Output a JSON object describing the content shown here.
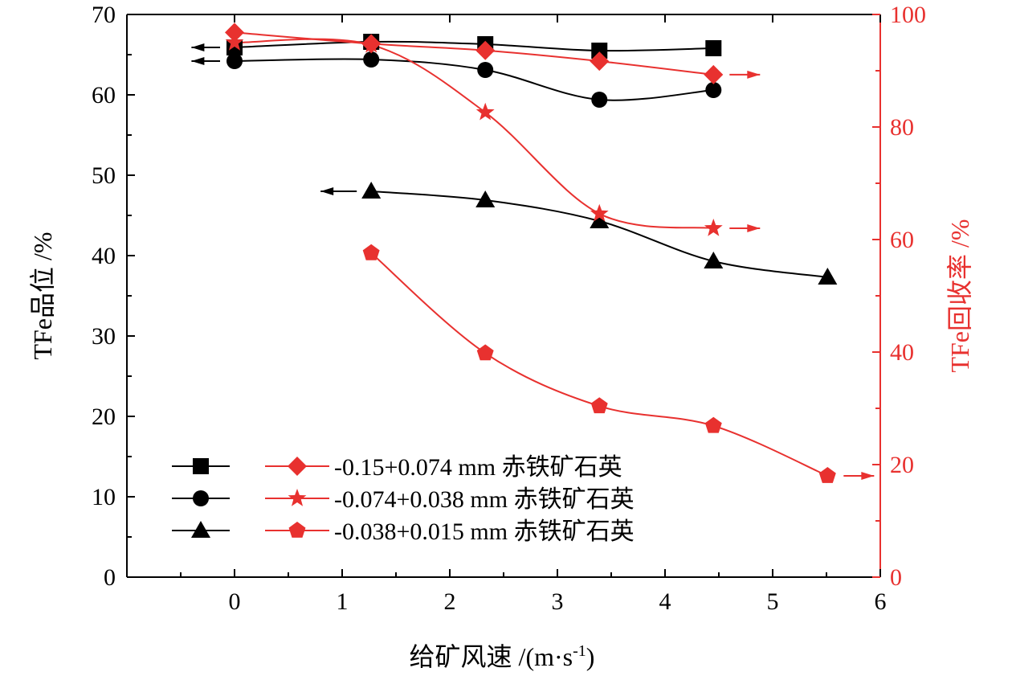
{
  "chart_data": {
    "type": "line",
    "xlabel": "给矿风速  /(m·s",
    "xlabel_sup": "-1",
    "xlabel_tail": ")",
    "ylabel_left": "TFe品位  /%",
    "ylabel_right": "TFe回收率  /%",
    "xlim": [
      -1,
      6
    ],
    "xticks": [
      "0",
      "1",
      "2",
      "3",
      "4",
      "5",
      "6"
    ],
    "ylim_left": [
      0,
      70
    ],
    "yticks_left": [
      "0",
      "10",
      "20",
      "30",
      "40",
      "50",
      "60",
      "70"
    ],
    "ylim_right": [
      0,
      100
    ],
    "yticks_right": [
      "0",
      "20",
      "40",
      "60",
      "80",
      "100"
    ],
    "grade_series": [
      {
        "key": "grade_015",
        "marker": "square",
        "x": [
          0,
          1.27,
          2.33,
          3.39,
          4.45
        ],
        "y": [
          65.9,
          66.6,
          66.3,
          65.5,
          65.8
        ]
      },
      {
        "key": "grade_074",
        "marker": "circle",
        "x": [
          0,
          1.27,
          2.33,
          3.39,
          4.45
        ],
        "y": [
          64.2,
          64.4,
          63.1,
          59.4,
          60.6
        ]
      },
      {
        "key": "grade_038",
        "marker": "triangle",
        "x": [
          1.27,
          2.33,
          3.39,
          4.45,
          5.51
        ],
        "y": [
          48.0,
          46.9,
          44.3,
          39.3,
          37.3
        ]
      }
    ],
    "recovery_series": [
      {
        "key": "rec_015",
        "marker": "diamond",
        "x": [
          0,
          1.27,
          2.33,
          3.39,
          4.45
        ],
        "y": [
          96.8,
          94.8,
          93.6,
          91.7,
          89.3
        ]
      },
      {
        "key": "rec_074",
        "marker": "star",
        "x": [
          0,
          1.27,
          2.33,
          3.39,
          4.45
        ],
        "y": [
          95.0,
          94.6,
          82.6,
          64.6,
          62.0
        ]
      },
      {
        "key": "rec_038",
        "marker": "pentagon",
        "x": [
          1.27,
          2.33,
          3.39,
          4.45,
          5.51
        ],
        "y": [
          57.6,
          39.8,
          30.4,
          26.9,
          18.0
        ]
      }
    ],
    "legend": [
      {
        "label": "-0.15+0.074 mm 赤铁矿石英",
        "left_marker": "square",
        "right_marker": "diamond"
      },
      {
        "label": "-0.074+0.038 mm 赤铁矿石英",
        "left_marker": "circle",
        "right_marker": "star"
      },
      {
        "label": "-0.038+0.015 mm 赤铁矿石英",
        "left_marker": "triangle",
        "right_marker": "pentagon"
      }
    ],
    "legend_position": "bottom-left",
    "grid": false
  },
  "colors": {
    "grade": "#000000",
    "recovery": "#e8312f",
    "axis_left": "#000000",
    "axis_right": "#e8312f"
  }
}
